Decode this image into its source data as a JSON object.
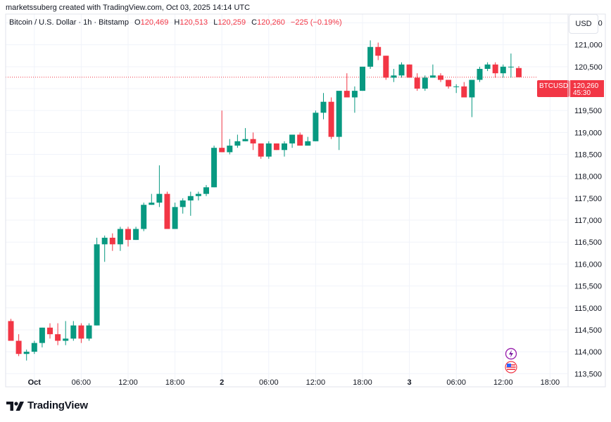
{
  "header": {
    "creator_text": "marketssuberg created with TradingView.com, Oct 03, 2025 14:14 UTC"
  },
  "legend": {
    "symbol": "Bitcoin / U.S. Dollar · 1h · Bitstamp",
    "open_label": "O",
    "open": "120,469",
    "high_label": "H",
    "high": "120,513",
    "low_label": "L",
    "low": "120,259",
    "close_label": "C",
    "close": "120,260",
    "change": "−225 (−0.19%)"
  },
  "currency_button": "USD",
  "price_tag": {
    "symbol": "BTCUSD",
    "price": "120,260",
    "countdown": "45:30"
  },
  "brand": {
    "name": "TradingView"
  },
  "colors": {
    "up": "#089981",
    "down": "#f23645",
    "grid": "#f0f3fa",
    "text": "#131722"
  },
  "chart_data": {
    "type": "candlestick",
    "interval": "1h",
    "y_ticks": [
      113500,
      114000,
      114500,
      115000,
      115500,
      116000,
      116500,
      117000,
      117500,
      118000,
      118500,
      119000,
      119500,
      120000,
      120500,
      121000,
      121500
    ],
    "y_tick_labels": [
      "113,500",
      "114,000",
      "114,500",
      "115,000",
      "115,500",
      "116,000",
      "116,500",
      "117,000",
      "117,500",
      "118,000",
      "118,500",
      "119,000",
      "119,500",
      "120,000",
      "120,500",
      "121,000",
      "121,500"
    ],
    "ylim": [
      113200,
      121700
    ],
    "x_tick_labels": [
      {
        "index": 3,
        "label": "Oct"
      },
      {
        "index": 9,
        "label": "06:00"
      },
      {
        "index": 15,
        "label": "12:00"
      },
      {
        "index": 21,
        "label": "18:00"
      },
      {
        "index": 27,
        "label": "2"
      },
      {
        "index": 33,
        "label": "06:00"
      },
      {
        "index": 39,
        "label": "12:00"
      },
      {
        "index": 45,
        "label": "18:00"
      },
      {
        "index": 51,
        "label": "3"
      },
      {
        "index": 57,
        "label": "06:00"
      },
      {
        "index": 63,
        "label": "12:00"
      },
      {
        "index": 69,
        "label": "18:00"
      }
    ],
    "candles": [
      [
        114700,
        114750,
        114250,
        114250
      ],
      [
        114250,
        114400,
        113900,
        113950
      ],
      [
        113950,
        114050,
        113800,
        114000
      ],
      [
        114000,
        114250,
        113950,
        114200
      ],
      [
        114200,
        114550,
        114100,
        114550
      ],
      [
        114550,
        114650,
        114300,
        114400
      ],
      [
        114400,
        114650,
        114150,
        114250
      ],
      [
        114250,
        114700,
        114150,
        114300
      ],
      [
        114300,
        114700,
        114250,
        114600
      ],
      [
        114600,
        114650,
        114200,
        114300
      ],
      [
        114300,
        114650,
        114250,
        114600
      ],
      [
        114600,
        116600,
        114600,
        116450
      ],
      [
        116450,
        116650,
        116050,
        116600
      ],
      [
        116600,
        116700,
        116300,
        116450
      ],
      [
        116450,
        116850,
        116300,
        116800
      ],
      [
        116800,
        116850,
        116400,
        116550
      ],
      [
        116550,
        116850,
        116550,
        116800
      ],
      [
        116800,
        117400,
        116750,
        117350
      ],
      [
        117350,
        117600,
        117350,
        117400
      ],
      [
        117400,
        118250,
        117300,
        117600
      ],
      [
        117600,
        117650,
        116800,
        116800
      ],
      [
        116800,
        117400,
        116800,
        117300
      ],
      [
        117300,
        117500,
        117150,
        117450
      ],
      [
        117450,
        117650,
        117100,
        117550
      ],
      [
        117550,
        117650,
        117450,
        117600
      ],
      [
        117600,
        117800,
        117550,
        117750
      ],
      [
        117750,
        118700,
        117750,
        118650
      ],
      [
        118650,
        119500,
        118550,
        118550
      ],
      [
        118550,
        118850,
        118500,
        118700
      ],
      [
        118700,
        118950,
        118650,
        118800
      ],
      [
        118800,
        119100,
        118800,
        118850
      ],
      [
        118850,
        119000,
        118600,
        118750
      ],
      [
        118750,
        118750,
        118400,
        118450
      ],
      [
        118450,
        118800,
        118400,
        118750
      ],
      [
        118750,
        118750,
        118600,
        118600
      ],
      [
        118600,
        118800,
        118450,
        118750
      ],
      [
        118750,
        118950,
        118650,
        118950
      ],
      [
        118950,
        119000,
        118700,
        118700
      ],
      [
        118700,
        118900,
        118700,
        118800
      ],
      [
        118800,
        119500,
        118800,
        119450
      ],
      [
        119450,
        119900,
        119300,
        119700
      ],
      [
        119700,
        119800,
        118850,
        118900
      ],
      [
        118900,
        119900,
        118600,
        119950
      ],
      [
        119950,
        120350,
        119850,
        119800
      ],
      [
        119800,
        120050,
        119450,
        119950
      ],
      [
        119950,
        120500,
        119950,
        120500
      ],
      [
        120500,
        121100,
        120450,
        120950
      ],
      [
        120950,
        121050,
        120650,
        120750
      ],
      [
        120750,
        120750,
        120200,
        120250
      ],
      [
        120250,
        120450,
        120150,
        120300
      ],
      [
        120300,
        120600,
        120250,
        120550
      ],
      [
        120550,
        120550,
        120250,
        120250
      ],
      [
        120250,
        120350,
        119950,
        120000
      ],
      [
        120000,
        120300,
        119950,
        120250
      ],
      [
        120250,
        120550,
        120250,
        120300
      ],
      [
        120300,
        120350,
        120150,
        120200
      ],
      [
        120200,
        120200,
        120000,
        120050
      ],
      [
        120050,
        120100,
        119900,
        120050
      ],
      [
        120050,
        120150,
        119850,
        119800
      ],
      [
        119800,
        120150,
        119350,
        120200
      ],
      [
        120200,
        120500,
        120150,
        120450
      ],
      [
        120450,
        120600,
        120400,
        120550
      ],
      [
        120550,
        120600,
        120250,
        120350
      ],
      [
        120350,
        120550,
        120250,
        120500
      ],
      [
        120500,
        120800,
        120250,
        120500
      ],
      [
        120469,
        120513,
        120259,
        120260
      ]
    ],
    "last_price": 120260
  }
}
